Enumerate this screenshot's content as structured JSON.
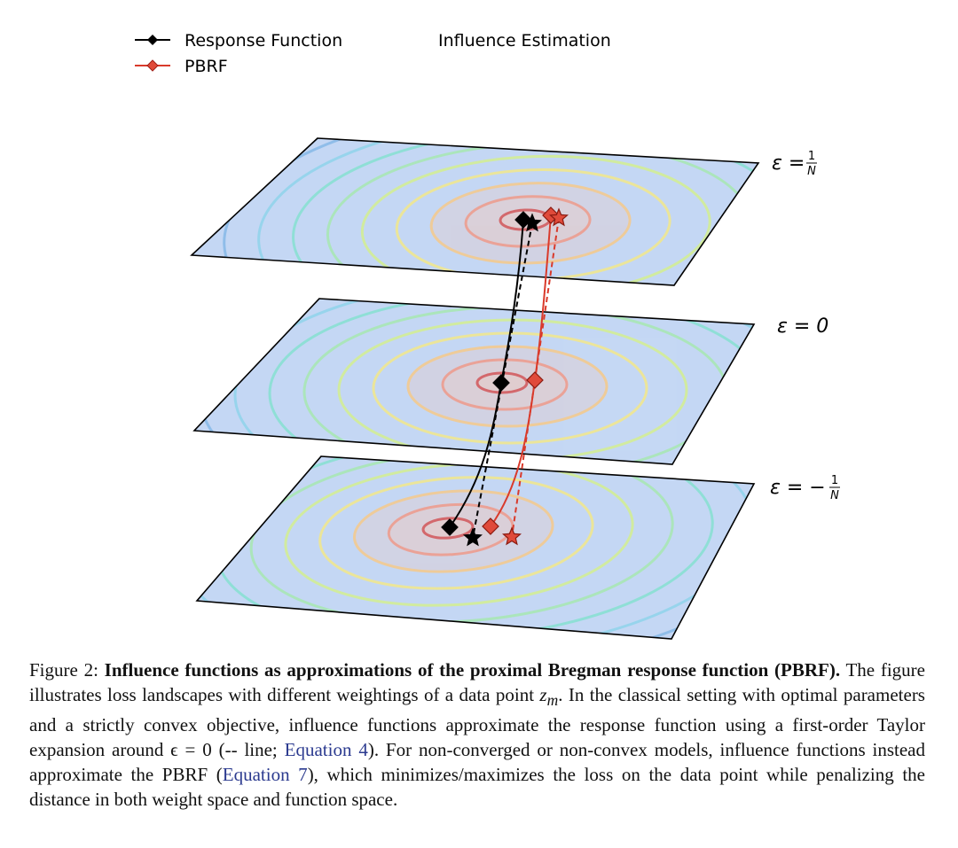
{
  "legend": {
    "items": [
      {
        "label": "Response Function"
      },
      {
        "label": "PBRF"
      },
      {
        "label": "Influence Estimation"
      }
    ]
  },
  "planes": [
    {
      "label": "ε =",
      "numerator": "1",
      "denominator": "N"
    },
    {
      "label": "ε = 0"
    },
    {
      "label": "ε = −",
      "numerator": "1",
      "denominator": "N"
    }
  ],
  "caption": {
    "prefix": "Figure 2:",
    "bold": "Influence functions as approximations of the proximal Bregman response function (PBRF).",
    "text1": "The figure illustrates loss landscapes with different weightings of a data point",
    "math_base": "z",
    "math_sub": "m",
    "text2": ".  In the classical setting with optimal parameters and a strictly convex objective, influence functions approximate the response function using a first-order Taylor expansion around ϵ = 0 (-- line;",
    "link1": "Equation 4",
    "text3": "). For non-converged or non-convex models, influence functions instead approximate the PBRF (",
    "link2": "Equation 7",
    "text4": "), which minimizes/maximizes the loss on the data point while penalizing the distance in both weight space and function space."
  }
}
